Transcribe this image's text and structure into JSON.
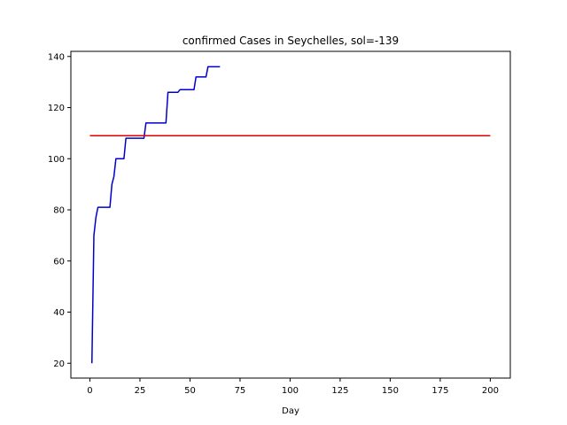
{
  "chart_data": {
    "type": "line",
    "title": "confirmed Cases in Seychelles, sol=-139",
    "xlabel": "Day",
    "ylabel": "",
    "xlim": [
      -9.5,
      210
    ],
    "ylim": [
      14.2,
      142
    ],
    "xticks": [
      0,
      25,
      50,
      75,
      100,
      125,
      150,
      175,
      200
    ],
    "yticks": [
      20,
      40,
      60,
      80,
      100,
      120,
      140
    ],
    "grid": false,
    "legend": "none",
    "series": [
      {
        "color": "#0000cc",
        "x": [
          1,
          2,
          3,
          4,
          5,
          6,
          7,
          8,
          9,
          10,
          11,
          12,
          13,
          14,
          15,
          16,
          17,
          18,
          19,
          20,
          21,
          22,
          23,
          24,
          25,
          26,
          27,
          28,
          29,
          30,
          31,
          32,
          33,
          34,
          35,
          36,
          37,
          38,
          39,
          40,
          41,
          42,
          43,
          44,
          45,
          46,
          47,
          48,
          49,
          50,
          51,
          52,
          53,
          54,
          55,
          56,
          57,
          58,
          59,
          60,
          61,
          62,
          63,
          64,
          65
        ],
        "y": [
          20,
          70,
          77,
          81,
          81,
          81,
          81,
          81,
          81,
          81,
          90,
          93,
          100,
          100,
          100,
          100,
          100,
          108,
          108,
          108,
          108,
          108,
          108,
          108,
          108,
          108,
          108,
          114,
          114,
          114,
          114,
          114,
          114,
          114,
          114,
          114,
          114,
          114,
          126,
          126,
          126,
          126,
          126,
          126,
          127,
          127,
          127,
          127,
          127,
          127,
          127,
          127,
          132,
          132,
          132,
          132,
          132,
          132,
          136,
          136,
          136,
          136,
          136,
          136,
          136
        ]
      },
      {
        "color": "#dd0000",
        "x": [
          0,
          200
        ],
        "y": [
          109,
          109
        ]
      }
    ]
  }
}
